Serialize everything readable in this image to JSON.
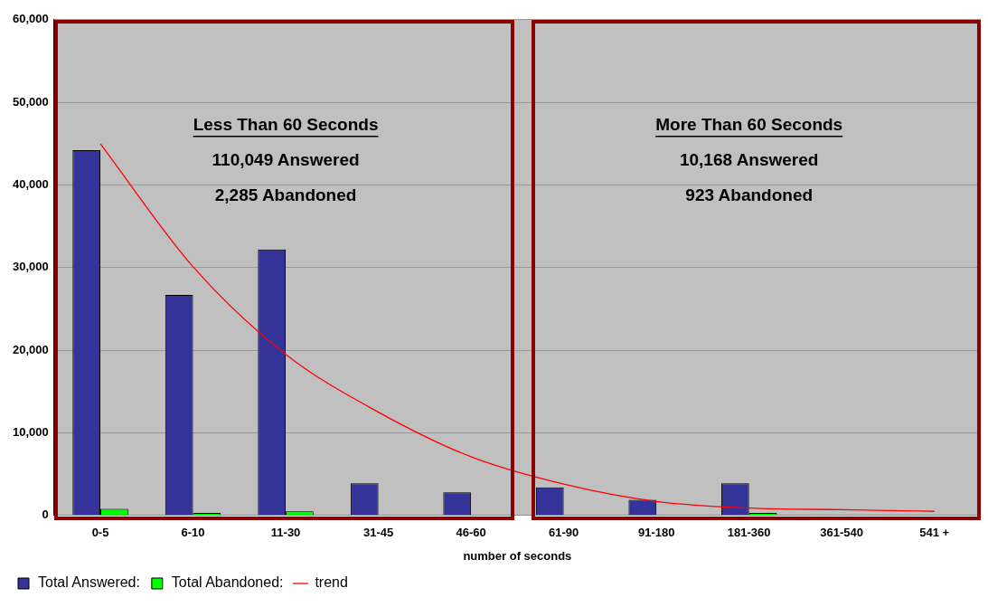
{
  "chart_data": {
    "type": "bar",
    "xlabel": "number of seconds",
    "categories": [
      "0-5",
      "6-10",
      "11-30",
      "31-45",
      "46-60",
      "61-90",
      "91-180",
      "181-360",
      "361-540",
      "541 +"
    ],
    "series": [
      {
        "name": "Total Answered:",
        "color": "#333399",
        "values": [
          44200,
          26700,
          32200,
          3900,
          2800,
          3400,
          1900,
          3900,
          0,
          0
        ]
      },
      {
        "name": "Total Abandoned:",
        "color": "#00ff00",
        "values": [
          800,
          300,
          500,
          0,
          0,
          0,
          0,
          300,
          0,
          0
        ]
      },
      {
        "name": "trend",
        "type": "line",
        "color": "#ff0000",
        "marker": "none",
        "values": [
          45000,
          30100,
          19500,
          12500,
          7100,
          3800,
          1700,
          900,
          700,
          500
        ]
      }
    ],
    "ylim": [
      0,
      60000
    ],
    "yticks": [
      0,
      {
        "value": 10000,
        "label": "10,000"
      },
      {
        "value": 20000,
        "label": "20,000"
      },
      {
        "value": 30000,
        "label": "30,000"
      },
      {
        "value": 40000,
        "label": "40,000"
      },
      {
        "value": 50000,
        "label": "50,000"
      },
      {
        "value": 60000,
        "label": "60,000"
      }
    ],
    "grid": "y",
    "legend": "bottom",
    "annotations": [
      "Less Than 60 Seconds",
      "110,049 Answered",
      "2,285 Abandoned",
      "More Than 60 Seconds",
      "10,168 Answered",
      "923 Abandoned"
    ]
  }
}
